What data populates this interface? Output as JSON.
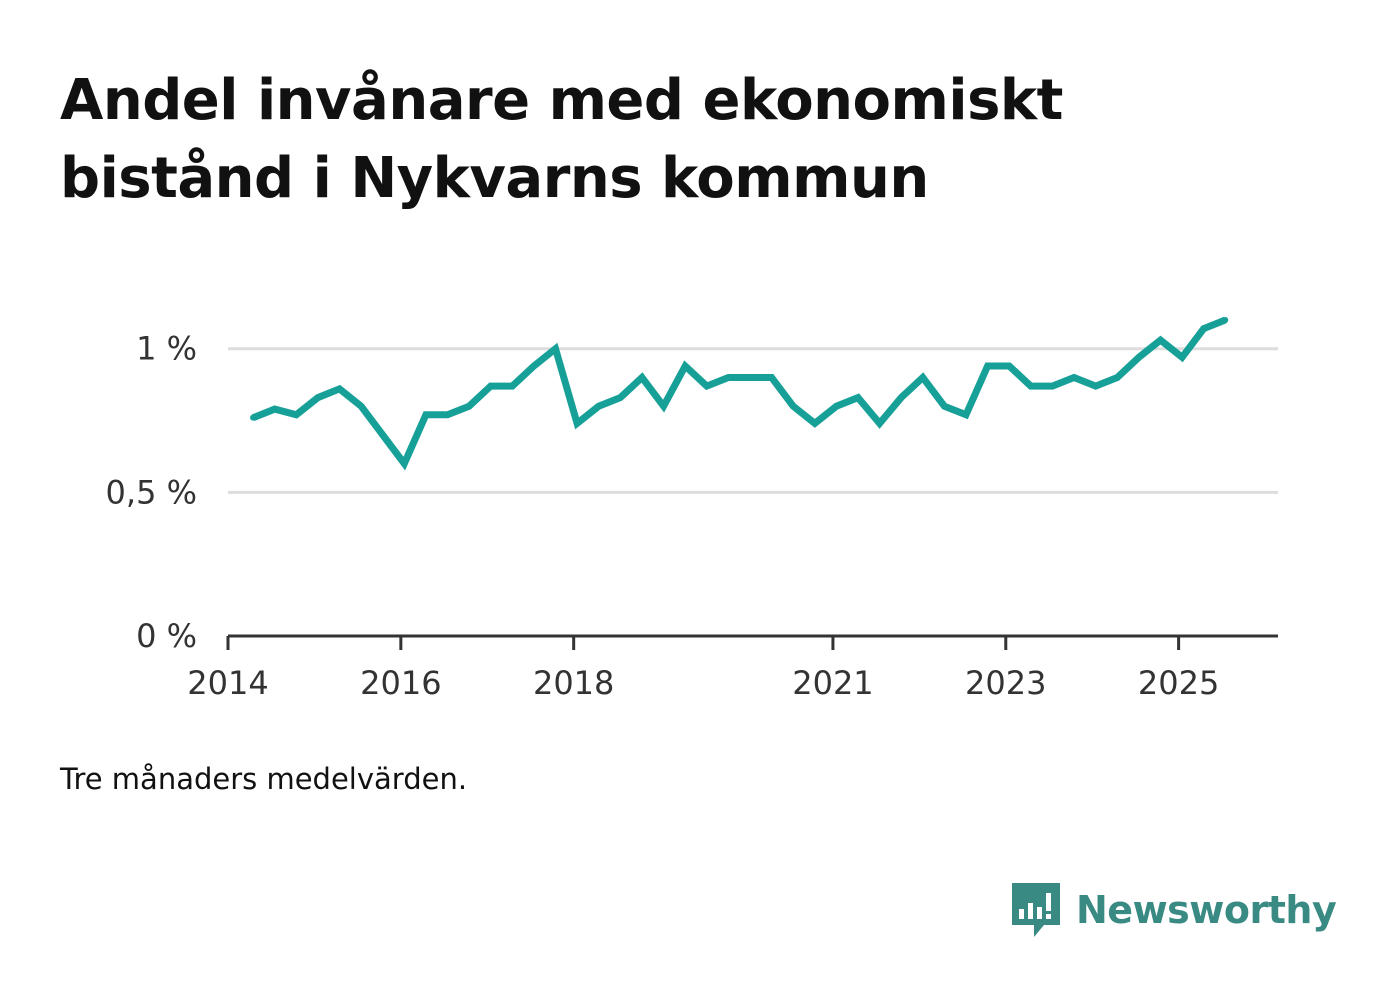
{
  "title": "Andel invånare med ekonomiskt bistånd i Nykvarns kommun",
  "note": "Tre månaders medelvärden.",
  "brand": {
    "name": "Newsworthy",
    "icon": "newsworthy-logo-icon",
    "color": "#3a8a84"
  },
  "colors": {
    "line": "#17a098",
    "grid": "#dddddd",
    "axis": "#333333"
  },
  "chart_data": {
    "type": "line",
    "title": "Andel invånare med ekonomiskt bistånd i Nykvarns kommun",
    "xlabel": "",
    "ylabel": "",
    "ylim": [
      0,
      1.1
    ],
    "xlim": [
      2014,
      2026.15
    ],
    "y_ticks": [
      {
        "value": 0,
        "label": "0 %"
      },
      {
        "value": 0.5,
        "label": "0,5 %"
      },
      {
        "value": 1,
        "label": "1 %"
      }
    ],
    "x_ticks": [
      {
        "value": 2014,
        "label": "2014"
      },
      {
        "value": 2016,
        "label": "2016"
      },
      {
        "value": 2018,
        "label": "2018"
      },
      {
        "value": 2021,
        "label": "2021"
      },
      {
        "value": 2023,
        "label": "2023"
      },
      {
        "value": 2025,
        "label": "2025"
      }
    ],
    "grid": true,
    "series": [
      {
        "name": "Andel invånare med ekonomiskt bistånd",
        "x": [
          2014.29,
          2014.54,
          2014.79,
          2015.04,
          2015.29,
          2015.54,
          2015.79,
          2016.04,
          2016.29,
          2016.54,
          2016.79,
          2017.04,
          2017.29,
          2017.54,
          2017.79,
          2018.04,
          2018.29,
          2018.54,
          2018.79,
          2019.04,
          2019.29,
          2019.54,
          2019.79,
          2020.04,
          2020.29,
          2020.54,
          2020.79,
          2021.04,
          2021.29,
          2021.54,
          2021.79,
          2022.04,
          2022.29,
          2022.54,
          2022.79,
          2023.04,
          2023.29,
          2023.54,
          2023.79,
          2024.04,
          2024.29,
          2024.54,
          2024.79,
          2025.04,
          2025.29,
          2025.54
        ],
        "values": [
          0.76,
          0.79,
          0.77,
          0.83,
          0.86,
          0.8,
          0.7,
          0.6,
          0.77,
          0.77,
          0.8,
          0.87,
          0.87,
          0.94,
          1.0,
          0.74,
          0.8,
          0.83,
          0.9,
          0.8,
          0.94,
          0.87,
          0.9,
          0.9,
          0.9,
          0.8,
          0.74,
          0.8,
          0.83,
          0.74,
          0.83,
          0.9,
          0.8,
          0.77,
          0.94,
          0.94,
          0.87,
          0.87,
          0.9,
          0.87,
          0.9,
          0.97,
          1.03,
          0.97,
          1.07,
          1.1
        ]
      }
    ]
  }
}
